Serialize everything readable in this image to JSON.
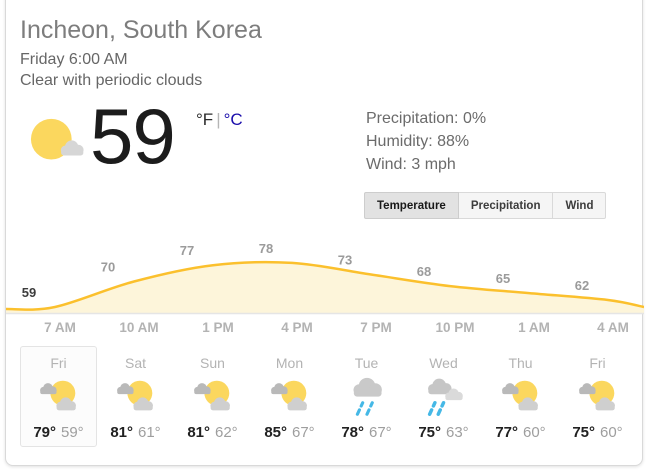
{
  "header": {
    "title": "Incheon, South Korea",
    "datetime": "Friday 6:00 AM",
    "condition": "Clear with periodic clouds"
  },
  "current": {
    "temperature": "59",
    "unit_f": "°F",
    "unit_separator": "|",
    "unit_c": "°C",
    "icon": "sun-with-cloud",
    "details": [
      {
        "label": "Precipitation",
        "value": "0%"
      },
      {
        "label": "Humidity",
        "value": "88%"
      },
      {
        "label": "Wind",
        "value": "3 mph"
      }
    ]
  },
  "tabs": [
    {
      "label": "Temperature",
      "active": true
    },
    {
      "label": "Precipitation",
      "active": false
    },
    {
      "label": "Wind",
      "active": false
    }
  ],
  "chart_data": {
    "type": "area",
    "x": [
      "7 AM",
      "10 AM",
      "1 PM",
      "4 PM",
      "7 PM",
      "10 PM",
      "1 AM",
      "4 AM"
    ],
    "values": [
      59,
      70,
      77,
      78,
      73,
      68,
      65,
      62
    ],
    "unit": "°F",
    "current_index": 0,
    "ylim": [
      55,
      80
    ],
    "grid": false,
    "legend": false,
    "line_color": "#fbc02d",
    "fill_color": "#fdf5da"
  },
  "forecast": {
    "days": [
      {
        "day": "Fri",
        "icon": "partly-cloudy",
        "high": "79°",
        "low": "59°",
        "selected": true
      },
      {
        "day": "Sat",
        "icon": "partly-cloudy",
        "high": "81°",
        "low": "61°",
        "selected": false
      },
      {
        "day": "Sun",
        "icon": "partly-cloudy",
        "high": "81°",
        "low": "62°",
        "selected": false
      },
      {
        "day": "Mon",
        "icon": "partly-cloudy",
        "high": "85°",
        "low": "67°",
        "selected": false
      },
      {
        "day": "Tue",
        "icon": "rain",
        "high": "78°",
        "low": "67°",
        "selected": false
      },
      {
        "day": "Wed",
        "icon": "rain-clouds",
        "high": "75°",
        "low": "63°",
        "selected": false
      },
      {
        "day": "Thu",
        "icon": "partly-cloudy",
        "high": "77°",
        "low": "60°",
        "selected": false
      },
      {
        "day": "Fri",
        "icon": "partly-cloudy",
        "high": "75°",
        "low": "60°",
        "selected": false
      }
    ]
  },
  "colors": {
    "chart_line": "#fbc02d",
    "chart_fill": "#fdf5da",
    "sun": "#fbd75e",
    "cloud_dark": "#b9b9b9",
    "cloud_mid": "#c9c9c9",
    "cloud_light": "#d2d2d2",
    "rain": "#45b8e6",
    "celsius_link": "#1a0dab",
    "value_label": "#9b9b9b",
    "value_label_current": "#3d3d3d",
    "axis_label": "#b3b3b3"
  }
}
